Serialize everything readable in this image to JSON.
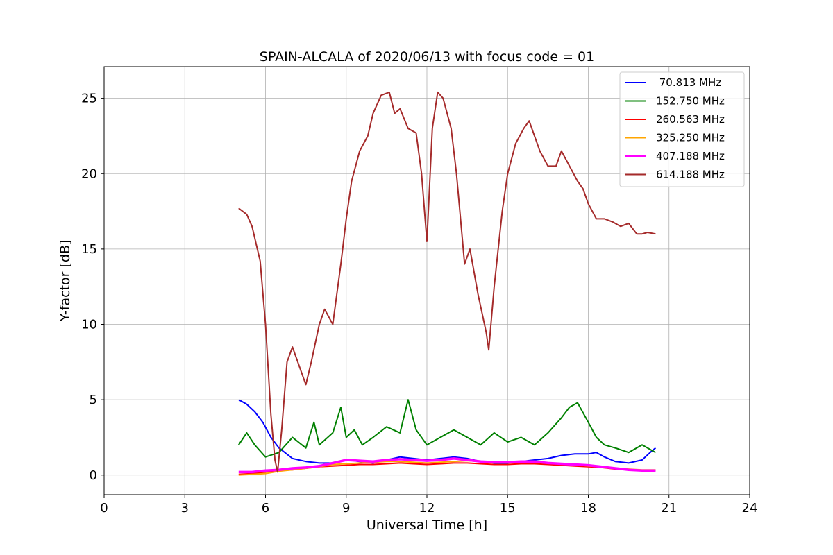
{
  "chart_data": {
    "type": "line",
    "title": "SPAIN-ALCALA of 2020/06/13 with focus code = 01",
    "xlabel": "Universal Time [h]",
    "ylabel": "Y-factor [dB]",
    "xlim": [
      0,
      24
    ],
    "ylim": [
      -1.3,
      27.1
    ],
    "xticks": [
      0,
      3,
      6,
      9,
      12,
      15,
      18,
      21,
      24
    ],
    "yticks": [
      0,
      5,
      10,
      15,
      20,
      25
    ],
    "grid": true,
    "legend_position": "top-right",
    "series": [
      {
        "name": " 70.813 MHz",
        "color": "#0000ff",
        "points": [
          [
            5.0,
            5.0
          ],
          [
            5.3,
            4.7
          ],
          [
            5.6,
            4.2
          ],
          [
            5.9,
            3.5
          ],
          [
            6.2,
            2.5
          ],
          [
            6.5,
            1.8
          ],
          [
            7.0,
            1.1
          ],
          [
            7.5,
            0.9
          ],
          [
            8.0,
            0.8
          ],
          [
            8.5,
            0.8
          ],
          [
            9.0,
            1.0
          ],
          [
            9.5,
            0.9
          ],
          [
            10.0,
            0.8
          ],
          [
            10.5,
            1.0
          ],
          [
            11.0,
            1.2
          ],
          [
            11.5,
            1.1
          ],
          [
            12.0,
            1.0
          ],
          [
            12.5,
            1.1
          ],
          [
            13.0,
            1.2
          ],
          [
            13.5,
            1.1
          ],
          [
            14.0,
            0.9
          ],
          [
            14.5,
            0.8
          ],
          [
            15.0,
            0.8
          ],
          [
            15.5,
            0.9
          ],
          [
            16.0,
            1.0
          ],
          [
            16.5,
            1.1
          ],
          [
            17.0,
            1.3
          ],
          [
            17.5,
            1.4
          ],
          [
            18.0,
            1.4
          ],
          [
            18.3,
            1.5
          ],
          [
            18.6,
            1.2
          ],
          [
            19.0,
            0.9
          ],
          [
            19.5,
            0.8
          ],
          [
            20.0,
            1.0
          ],
          [
            20.3,
            1.5
          ],
          [
            20.5,
            1.8
          ]
        ]
      },
      {
        "name": "152.750 MHz",
        "color": "#008000",
        "points": [
          [
            5.0,
            2.0
          ],
          [
            5.3,
            2.8
          ],
          [
            5.6,
            2.0
          ],
          [
            6.0,
            1.2
          ],
          [
            6.5,
            1.5
          ],
          [
            7.0,
            2.5
          ],
          [
            7.5,
            1.8
          ],
          [
            7.8,
            3.5
          ],
          [
            8.0,
            2.0
          ],
          [
            8.5,
            2.8
          ],
          [
            8.8,
            4.5
          ],
          [
            9.0,
            2.5
          ],
          [
            9.3,
            3.0
          ],
          [
            9.6,
            2.0
          ],
          [
            10.0,
            2.5
          ],
          [
            10.5,
            3.2
          ],
          [
            11.0,
            2.8
          ],
          [
            11.3,
            5.0
          ],
          [
            11.6,
            3.0
          ],
          [
            12.0,
            2.0
          ],
          [
            12.5,
            2.5
          ],
          [
            13.0,
            3.0
          ],
          [
            13.5,
            2.5
          ],
          [
            14.0,
            2.0
          ],
          [
            14.5,
            2.8
          ],
          [
            15.0,
            2.2
          ],
          [
            15.5,
            2.5
          ],
          [
            16.0,
            2.0
          ],
          [
            16.5,
            2.8
          ],
          [
            17.0,
            3.8
          ],
          [
            17.3,
            4.5
          ],
          [
            17.6,
            4.8
          ],
          [
            18.0,
            3.5
          ],
          [
            18.3,
            2.5
          ],
          [
            18.6,
            2.0
          ],
          [
            19.0,
            1.8
          ],
          [
            19.5,
            1.5
          ],
          [
            20.0,
            2.0
          ],
          [
            20.5,
            1.5
          ]
        ]
      },
      {
        "name": "260.563 MHz",
        "color": "#ff0000",
        "points": [
          [
            5.0,
            0.05
          ],
          [
            5.5,
            0.1
          ],
          [
            6.0,
            0.2
          ],
          [
            6.5,
            0.3
          ],
          [
            7.0,
            0.35
          ],
          [
            7.5,
            0.45
          ],
          [
            8.0,
            0.55
          ],
          [
            8.5,
            0.6
          ],
          [
            9.0,
            0.65
          ],
          [
            9.5,
            0.7
          ],
          [
            10.0,
            0.7
          ],
          [
            10.5,
            0.75
          ],
          [
            11.0,
            0.8
          ],
          [
            11.5,
            0.75
          ],
          [
            12.0,
            0.7
          ],
          [
            12.5,
            0.75
          ],
          [
            13.0,
            0.8
          ],
          [
            13.5,
            0.8
          ],
          [
            14.0,
            0.75
          ],
          [
            14.5,
            0.7
          ],
          [
            15.0,
            0.7
          ],
          [
            15.5,
            0.75
          ],
          [
            16.0,
            0.75
          ],
          [
            16.5,
            0.7
          ],
          [
            17.0,
            0.65
          ],
          [
            17.5,
            0.6
          ],
          [
            18.0,
            0.55
          ],
          [
            18.5,
            0.5
          ],
          [
            19.0,
            0.4
          ],
          [
            19.5,
            0.35
          ],
          [
            20.0,
            0.3
          ],
          [
            20.5,
            0.3
          ]
        ]
      },
      {
        "name": "325.250 MHz",
        "color": "#ffa500",
        "points": [
          [
            5.0,
            0.0
          ],
          [
            5.5,
            0.05
          ],
          [
            6.0,
            0.1
          ],
          [
            6.5,
            0.25
          ],
          [
            7.0,
            0.35
          ],
          [
            7.5,
            0.45
          ],
          [
            8.0,
            0.55
          ],
          [
            8.5,
            0.7
          ],
          [
            9.0,
            0.75
          ],
          [
            9.5,
            0.8
          ],
          [
            10.0,
            0.85
          ],
          [
            10.5,
            0.9
          ],
          [
            11.0,
            0.9
          ],
          [
            11.5,
            0.85
          ],
          [
            12.0,
            0.8
          ],
          [
            12.5,
            0.85
          ],
          [
            13.0,
            0.9
          ],
          [
            13.5,
            0.95
          ],
          [
            14.0,
            0.9
          ],
          [
            14.5,
            0.85
          ],
          [
            15.0,
            0.85
          ],
          [
            15.5,
            0.9
          ],
          [
            16.0,
            0.85
          ],
          [
            16.5,
            0.8
          ],
          [
            17.0,
            0.75
          ],
          [
            17.5,
            0.7
          ],
          [
            18.0,
            0.6
          ],
          [
            18.5,
            0.55
          ],
          [
            19.0,
            0.45
          ],
          [
            19.5,
            0.4
          ],
          [
            20.0,
            0.35
          ],
          [
            20.5,
            0.35
          ]
        ]
      },
      {
        "name": "407.188 MHz",
        "color": "#ff00ff",
        "points": [
          [
            5.0,
            0.2
          ],
          [
            5.5,
            0.2
          ],
          [
            6.0,
            0.3
          ],
          [
            6.5,
            0.35
          ],
          [
            7.0,
            0.45
          ],
          [
            7.5,
            0.5
          ],
          [
            8.0,
            0.6
          ],
          [
            8.5,
            0.8
          ],
          [
            9.0,
            1.0
          ],
          [
            9.5,
            0.95
          ],
          [
            10.0,
            0.9
          ],
          [
            10.5,
            1.0
          ],
          [
            11.0,
            1.05
          ],
          [
            11.5,
            1.0
          ],
          [
            12.0,
            0.95
          ],
          [
            12.5,
            1.0
          ],
          [
            13.0,
            1.1
          ],
          [
            13.5,
            1.0
          ],
          [
            14.0,
            0.9
          ],
          [
            14.5,
            0.85
          ],
          [
            15.0,
            0.85
          ],
          [
            15.5,
            0.9
          ],
          [
            16.0,
            0.9
          ],
          [
            16.5,
            0.8
          ],
          [
            17.0,
            0.75
          ],
          [
            17.5,
            0.7
          ],
          [
            18.0,
            0.65
          ],
          [
            18.5,
            0.55
          ],
          [
            19.0,
            0.45
          ],
          [
            19.5,
            0.35
          ],
          [
            20.0,
            0.3
          ],
          [
            20.5,
            0.3
          ]
        ]
      },
      {
        "name": "614.188 MHz",
        "color": "#a52a2a",
        "points": [
          [
            5.0,
            17.7
          ],
          [
            5.3,
            17.3
          ],
          [
            5.5,
            16.5
          ],
          [
            5.8,
            14.2
          ],
          [
            6.0,
            10.0
          ],
          [
            6.2,
            4.0
          ],
          [
            6.35,
            1.0
          ],
          [
            6.45,
            0.2
          ],
          [
            6.6,
            3.0
          ],
          [
            6.8,
            7.5
          ],
          [
            7.0,
            8.5
          ],
          [
            7.2,
            7.5
          ],
          [
            7.5,
            6.0
          ],
          [
            7.7,
            7.5
          ],
          [
            8.0,
            10.0
          ],
          [
            8.2,
            11.0
          ],
          [
            8.5,
            10.0
          ],
          [
            8.8,
            14.0
          ],
          [
            9.0,
            17.0
          ],
          [
            9.2,
            19.5
          ],
          [
            9.5,
            21.5
          ],
          [
            9.8,
            22.5
          ],
          [
            10.0,
            24.0
          ],
          [
            10.3,
            25.2
          ],
          [
            10.6,
            25.4
          ],
          [
            10.8,
            24.0
          ],
          [
            11.0,
            24.3
          ],
          [
            11.3,
            23.0
          ],
          [
            11.6,
            22.7
          ],
          [
            11.8,
            20.0
          ],
          [
            12.0,
            15.5
          ],
          [
            12.2,
            23.0
          ],
          [
            12.4,
            25.4
          ],
          [
            12.6,
            25.0
          ],
          [
            12.9,
            23.0
          ],
          [
            13.1,
            20.0
          ],
          [
            13.4,
            14.0
          ],
          [
            13.6,
            15.0
          ],
          [
            13.9,
            12.0
          ],
          [
            14.2,
            9.5
          ],
          [
            14.3,
            8.3
          ],
          [
            14.5,
            12.5
          ],
          [
            14.8,
            17.5
          ],
          [
            15.0,
            20.0
          ],
          [
            15.3,
            22.0
          ],
          [
            15.6,
            23.0
          ],
          [
            15.8,
            23.5
          ],
          [
            16.0,
            22.5
          ],
          [
            16.2,
            21.5
          ],
          [
            16.5,
            20.5
          ],
          [
            16.8,
            20.5
          ],
          [
            17.0,
            21.5
          ],
          [
            17.3,
            20.5
          ],
          [
            17.6,
            19.5
          ],
          [
            17.8,
            19.0
          ],
          [
            18.0,
            18.0
          ],
          [
            18.3,
            17.0
          ],
          [
            18.6,
            17.0
          ],
          [
            18.9,
            16.8
          ],
          [
            19.2,
            16.5
          ],
          [
            19.5,
            16.7
          ],
          [
            19.8,
            16.0
          ],
          [
            20.0,
            16.0
          ],
          [
            20.2,
            16.1
          ],
          [
            20.5,
            16.0
          ]
        ]
      }
    ]
  }
}
